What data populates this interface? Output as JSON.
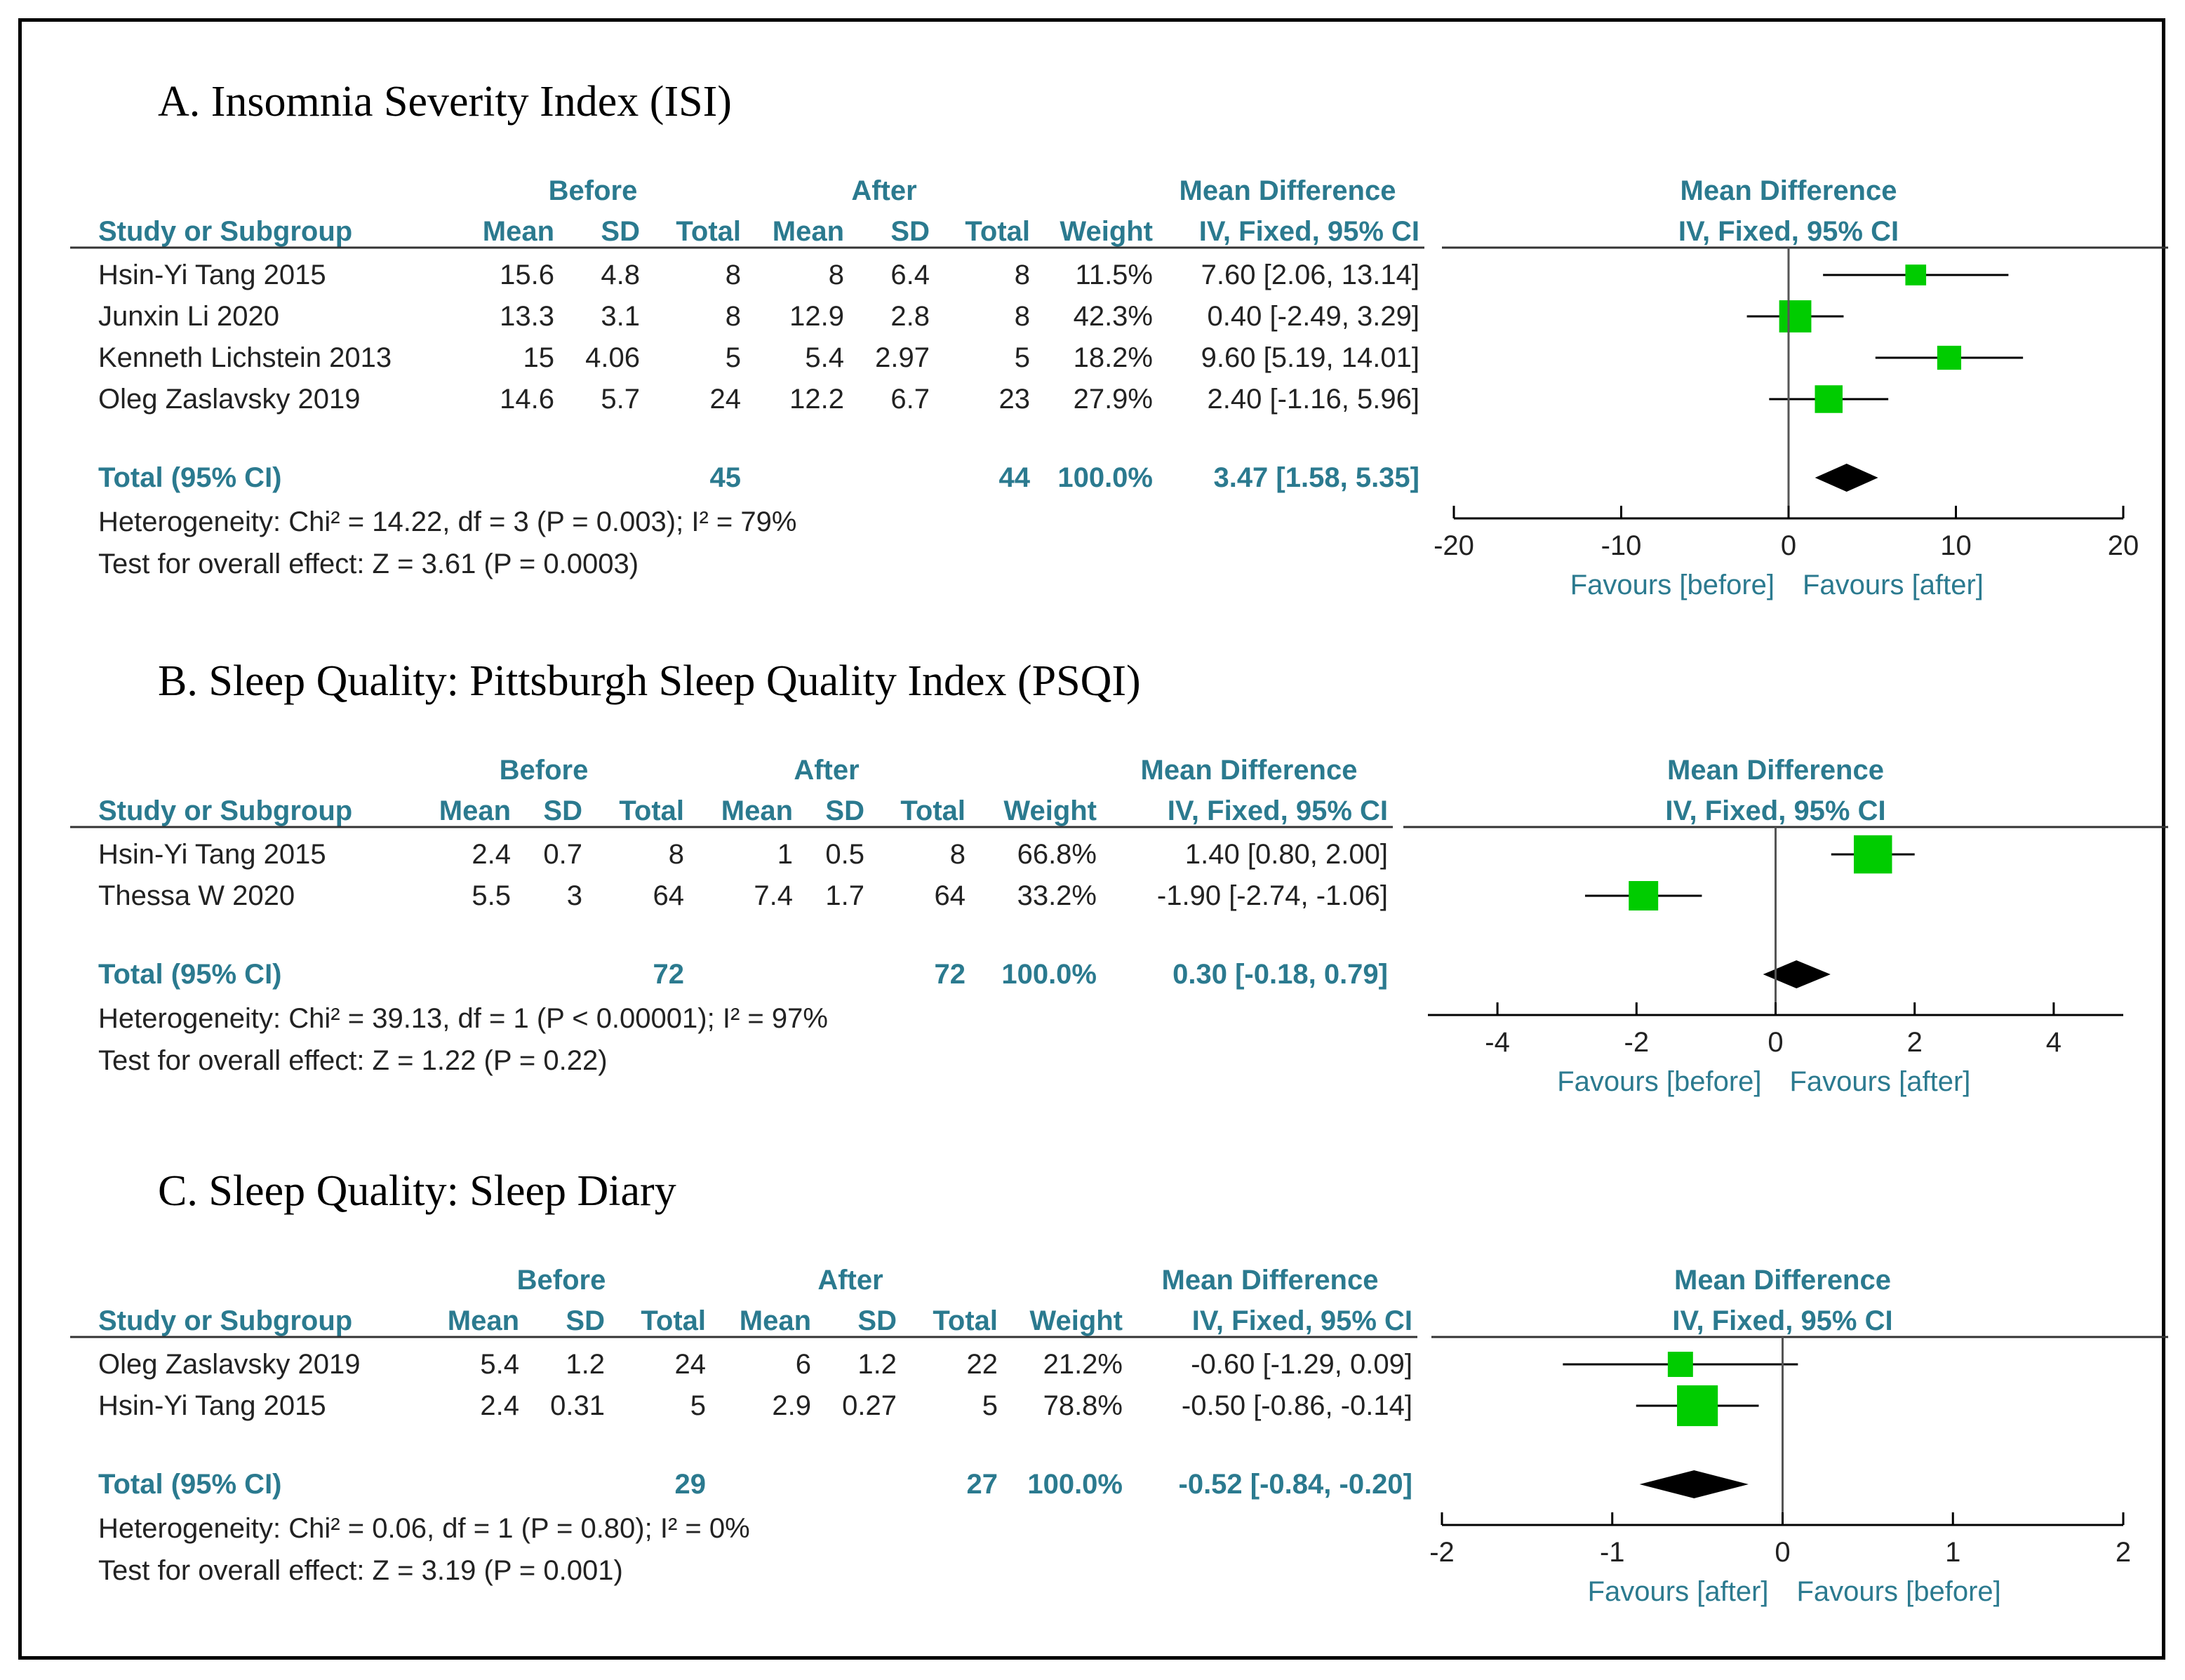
{
  "columns": {
    "before": "Before",
    "after": "After",
    "md": "Mean Difference",
    "md_sub": "IV, Fixed, 95% CI",
    "study": "Study or Subgroup",
    "mean": "Mean",
    "sd": "SD",
    "total": "Total",
    "weight": "Weight"
  },
  "chart_data": [
    {
      "type": "forest",
      "title": "A.  Insomnia Severity Index (ISI)",
      "studies": [
        {
          "name": "Hsin-Yi Tang 2015",
          "b_mean": "15.6",
          "b_sd": "4.8",
          "b_n": "8",
          "a_mean": "8",
          "a_sd": "6.4",
          "a_n": "8",
          "weight": "11.5%",
          "ci_text": "7.60 [2.06, 13.14]",
          "md": 7.6,
          "lo": 2.06,
          "hi": 13.14,
          "w": 11.5
        },
        {
          "name": "Junxin Li 2020",
          "b_mean": "13.3",
          "b_sd": "3.1",
          "b_n": "8",
          "a_mean": "12.9",
          "a_sd": "2.8",
          "a_n": "8",
          "weight": "42.3%",
          "ci_text": "0.40 [-2.49, 3.29]",
          "md": 0.4,
          "lo": -2.49,
          "hi": 3.29,
          "w": 42.3
        },
        {
          "name": "Kenneth Lichstein 2013",
          "b_mean": "15",
          "b_sd": "4.06",
          "b_n": "5",
          "a_mean": "5.4",
          "a_sd": "2.97",
          "a_n": "5",
          "weight": "18.2%",
          "ci_text": "9.60 [5.19, 14.01]",
          "md": 9.6,
          "lo": 5.19,
          "hi": 14.01,
          "w": 18.2
        },
        {
          "name": "Oleg Zaslavsky 2019",
          "b_mean": "14.6",
          "b_sd": "5.7",
          "b_n": "24",
          "a_mean": "12.2",
          "a_sd": "6.7",
          "a_n": "23",
          "weight": "27.9%",
          "ci_text": "2.40 [-1.16, 5.96]",
          "md": 2.4,
          "lo": -1.16,
          "hi": 5.96,
          "w": 27.9
        }
      ],
      "total": {
        "label": "Total (95% CI)",
        "b_n": "45",
        "a_n": "44",
        "weight": "100.0%",
        "ci_text": "3.47 [1.58, 5.35]",
        "md": 3.47,
        "lo": 1.58,
        "hi": 5.35
      },
      "heterogeneity": "Heterogeneity: Chi² = 14.22, df = 3 (P = 0.003); I² = 79%",
      "overall": "Test for overall effect: Z = 3.61 (P = 0.0003)",
      "xlim": [
        -20,
        20
      ],
      "ticks": [
        {
          "v": -20,
          "t": "-20"
        },
        {
          "v": -10,
          "t": "-10"
        },
        {
          "v": 0,
          "t": "0"
        },
        {
          "v": 10,
          "t": "10"
        },
        {
          "v": 20,
          "t": "20"
        }
      ],
      "favours_left": "Favours [before]",
      "favours_right": "Favours [after]"
    },
    {
      "type": "forest",
      "title": "B.  Sleep Quality: Pittsburgh Sleep Quality Index (PSQI)",
      "studies": [
        {
          "name": "Hsin-Yi Tang 2015",
          "b_mean": "2.4",
          "b_sd": "0.7",
          "b_n": "8",
          "a_mean": "1",
          "a_sd": "0.5",
          "a_n": "8",
          "weight": "66.8%",
          "ci_text": "1.40 [0.80, 2.00]",
          "md": 1.4,
          "lo": 0.8,
          "hi": 2.0,
          "w": 66.8
        },
        {
          "name": "Thessa W 2020",
          "b_mean": "5.5",
          "b_sd": "3",
          "b_n": "64",
          "a_mean": "7.4",
          "a_sd": "1.7",
          "a_n": "64",
          "weight": "33.2%",
          "ci_text": "-1.90 [-2.74, -1.06]",
          "md": -1.9,
          "lo": -2.74,
          "hi": -1.06,
          "w": 33.2
        }
      ],
      "total": {
        "label": "Total (95% CI)",
        "b_n": "72",
        "a_n": "72",
        "weight": "100.0%",
        "ci_text": "0.30 [-0.18, 0.79]",
        "md": 0.3,
        "lo": -0.18,
        "hi": 0.79
      },
      "heterogeneity": "Heterogeneity: Chi² = 39.13, df = 1 (P < 0.00001); I² = 97%",
      "overall": "Test for overall effect: Z = 1.22 (P = 0.22)",
      "xlim": [
        -5,
        5
      ],
      "ticks": [
        {
          "v": -4,
          "t": "-4"
        },
        {
          "v": -2,
          "t": "-2"
        },
        {
          "v": 0,
          "t": "0"
        },
        {
          "v": 2,
          "t": "2"
        },
        {
          "v": 4,
          "t": "4"
        }
      ],
      "favours_left": "Favours [before]",
      "favours_right": "Favours [after]"
    },
    {
      "type": "forest",
      "title": "C.  Sleep Quality: Sleep Diary",
      "studies": [
        {
          "name": "Oleg Zaslavsky 2019",
          "b_mean": "5.4",
          "b_sd": "1.2",
          "b_n": "24",
          "a_mean": "6",
          "a_sd": "1.2",
          "a_n": "22",
          "weight": "21.2%",
          "ci_text": "-0.60 [-1.29, 0.09]",
          "md": -0.6,
          "lo": -1.29,
          "hi": 0.09,
          "w": 21.2
        },
        {
          "name": "Hsin-Yi Tang 2015",
          "b_mean": "2.4",
          "b_sd": "0.31",
          "b_n": "5",
          "a_mean": "2.9",
          "a_sd": "0.27",
          "a_n": "5",
          "weight": "78.8%",
          "ci_text": "-0.50 [-0.86, -0.14]",
          "md": -0.5,
          "lo": -0.86,
          "hi": -0.14,
          "w": 78.8
        }
      ],
      "total": {
        "label": "Total (95% CI)",
        "b_n": "29",
        "a_n": "27",
        "weight": "100.0%",
        "ci_text": "-0.52 [-0.84, -0.20]",
        "md": -0.52,
        "lo": -0.84,
        "hi": -0.2
      },
      "heterogeneity": "Heterogeneity: Chi² = 0.06, df = 1 (P = 0.80); I² = 0%",
      "overall": "Test for overall effect: Z = 3.19 (P = 0.001)",
      "xlim": [
        -2,
        2
      ],
      "ticks": [
        {
          "v": -2,
          "t": "-2"
        },
        {
          "v": -1,
          "t": "-1"
        },
        {
          "v": 0,
          "t": "0"
        },
        {
          "v": 1,
          "t": "1"
        },
        {
          "v": 2,
          "t": "2"
        }
      ],
      "favours_left": "Favours [after]",
      "favours_right": "Favours [before]"
    }
  ],
  "colors": {
    "header": "#2b7a8f",
    "marker": "#00cc00",
    "diamond": "#000000"
  }
}
